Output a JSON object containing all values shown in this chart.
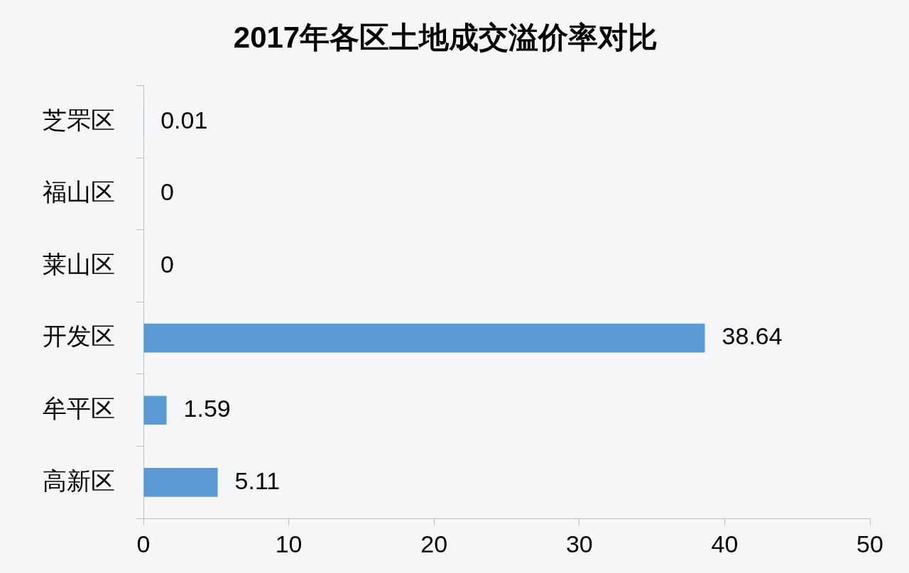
{
  "chart_data": {
    "type": "bar",
    "orientation": "horizontal",
    "title": "2017年各区土地成交溢价率对比",
    "categories": [
      "芝罘区",
      "福山区",
      "莱山区",
      "开发区",
      "牟平区",
      "高新区"
    ],
    "values": [
      0.01,
      0,
      0,
      38.64,
      1.59,
      5.11
    ],
    "color": "#5b9bd5",
    "xlim": [
      0,
      50
    ],
    "xticks": [
      0,
      10,
      20,
      30,
      40,
      50
    ],
    "data_labels": true
  }
}
